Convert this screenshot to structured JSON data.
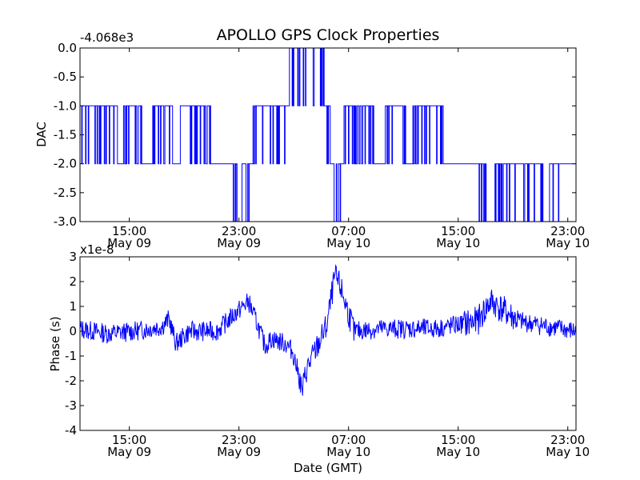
{
  "chart_data": [
    {
      "type": "line",
      "title": "APOLLO GPS Clock Properties",
      "ylabel": "DAC",
      "xlabel": "",
      "offset_label": "-4.068e3",
      "ylim": [
        -3.0,
        0.0
      ],
      "yticks": [
        "0.0",
        "-0.5",
        "-1.0",
        "-1.5",
        "-2.0",
        "-2.5",
        "-3.0"
      ],
      "xticks": [
        {
          "time": "15:00",
          "date": "May 09"
        },
        {
          "time": "23:00",
          "date": "May 09"
        },
        {
          "time": "07:00",
          "date": "May 10"
        },
        {
          "time": "15:00",
          "date": "May 10"
        },
        {
          "time": "23:00",
          "date": "May 10"
        }
      ],
      "xlim": [
        "May 09 11:24",
        "May 10 23:36"
      ],
      "color": "#0000ff",
      "series": [
        {
          "x_hours_from_start": [
            0,
            1,
            2,
            3,
            3.6,
            4,
            5,
            6,
            7,
            8,
            9,
            10,
            11,
            11.6,
            12.4,
            13,
            14,
            15,
            16,
            17,
            17.2,
            18,
            18.6,
            19,
            20,
            21,
            22,
            23,
            24,
            25,
            26,
            27,
            28,
            29,
            30,
            31,
            32,
            33,
            34,
            35,
            36
          ],
          "values": [
            -1,
            -1.5,
            -1,
            -2,
            -1,
            -1.5,
            -2,
            -1,
            -2,
            -1,
            -1.5,
            -2,
            -2,
            -3,
            -2,
            -1,
            -1.5,
            -1,
            0,
            -0.5,
            0,
            -1,
            -3,
            -2,
            -1,
            -1.5,
            -2,
            -1,
            -2,
            -1,
            -1.5,
            -2,
            -2,
            -2,
            -3,
            -2,
            -2.5,
            -2,
            -3,
            -2,
            -2
          ]
        }
      ]
    },
    {
      "type": "line",
      "title": "",
      "ylabel": "Phase (s)",
      "xlabel": "Date (GMT)",
      "offset_label": "x1e-8",
      "ylim": [
        -4,
        3
      ],
      "yticks": [
        "3",
        "2",
        "1",
        "0",
        "-1",
        "-2",
        "-3",
        "-4"
      ],
      "xticks": [
        {
          "time": "15:00",
          "date": "May 09"
        },
        {
          "time": "23:00",
          "date": "May 09"
        },
        {
          "time": "07:00",
          "date": "May 10"
        },
        {
          "time": "15:00",
          "date": "May 10"
        },
        {
          "time": "23:00",
          "date": "May 10"
        }
      ],
      "xlim": [
        "May 09 11:24",
        "May 10 23:36"
      ],
      "color": "#0000ff",
      "series": [
        {
          "x_hours_from_start": [
            0,
            2,
            4,
            6,
            6.5,
            7,
            8,
            10,
            11.5,
            12.3,
            13,
            13.5,
            14,
            15,
            15.5,
            16,
            16.2,
            16.5,
            17,
            18,
            18.6,
            19,
            20,
            22,
            24,
            26,
            29,
            30,
            31,
            32,
            34,
            36
          ],
          "values": [
            0.1,
            -0.1,
            0,
            0.2,
            0.5,
            -0.5,
            0,
            0,
            0.8,
            1.2,
            0.2,
            -0.6,
            -0.3,
            -0.5,
            -0.8,
            -1.8,
            -2.5,
            -1.6,
            -1.0,
            0.2,
            2.2,
            1.8,
            0,
            0.1,
            0.1,
            0.1,
            0.4,
            1.2,
            0.8,
            0.4,
            0.2,
            0
          ]
        }
      ]
    }
  ]
}
